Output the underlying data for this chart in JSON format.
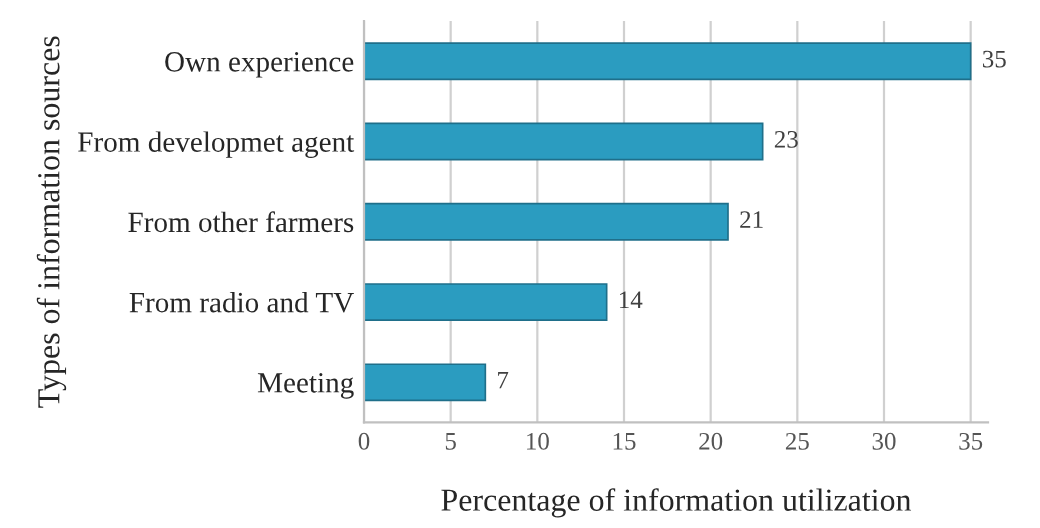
{
  "chart_data": {
    "type": "bar",
    "orientation": "horizontal",
    "xlabel": "Percentage of information utilization",
    "ylabel": "Types of information sources",
    "categories": [
      "Own experience",
      "From developmet agent",
      "From other farmers",
      "From radio and TV",
      "Meeting"
    ],
    "values": [
      35,
      23,
      21,
      14,
      7
    ],
    "color": "#2b9cc0",
    "data_labels": true,
    "xlim": [
      0,
      36
    ],
    "xticks": [
      0,
      5,
      10,
      15,
      20,
      25,
      30,
      35
    ],
    "grid": "x"
  }
}
